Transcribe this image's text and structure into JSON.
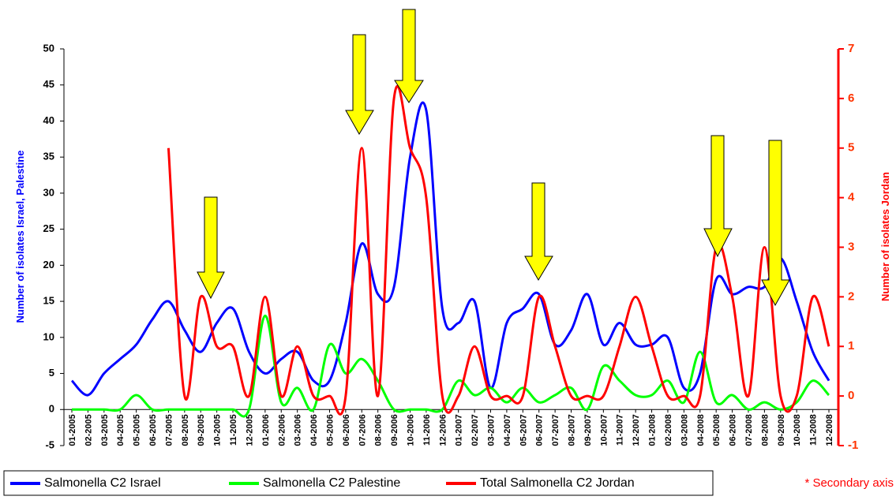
{
  "chart_data": {
    "type": "line",
    "categories": [
      "01-2005",
      "02-2005",
      "03-2005",
      "04-2005",
      "05-2005",
      "06-2005",
      "07-2005",
      "08-2005",
      "09-2005",
      "10-2005",
      "11-2005",
      "12-2005",
      "01-2006",
      "02-2006",
      "03-2006",
      "04-2006",
      "05-2006",
      "06-2006",
      "07-2006",
      "08-2006",
      "09-2006",
      "10-2006",
      "11-2006",
      "12-2006",
      "01-2007",
      "02-2007",
      "03-2007",
      "04-2007",
      "05-2007",
      "06-2007",
      "07-2007",
      "08-2007",
      "09-2007",
      "10-2007",
      "11-2007",
      "12-2007",
      "01-2008",
      "02-2008",
      "03-2008",
      "04-2008",
      "05-2008",
      "06-2008",
      "07-2008",
      "08-2008",
      "09-2008",
      "10-2008",
      "11-2008",
      "12-2008"
    ],
    "series": [
      {
        "name": "Salmonella C2 Israel",
        "color": "#0000ff",
        "values": [
          4,
          2,
          5,
          7,
          9,
          12.5,
          15,
          11,
          8,
          12,
          14,
          8,
          5,
          7,
          8,
          4,
          4,
          12,
          23,
          16,
          17,
          35,
          41.5,
          14,
          12,
          15,
          3,
          12,
          14,
          16,
          9,
          11,
          16,
          9,
          12,
          9,
          9,
          10,
          3,
          5,
          18,
          16,
          17,
          17,
          21,
          15,
          8,
          4
        ]
      },
      {
        "name": "Salmonella C2 Palestine",
        "color": "#00ff00",
        "values": [
          0,
          0,
          0,
          0,
          2,
          0,
          0,
          0,
          0,
          0,
          0,
          0,
          13,
          1,
          3,
          0,
          9,
          5,
          7,
          4,
          0,
          0,
          0,
          0,
          4,
          2,
          3,
          1,
          3,
          1,
          2,
          3,
          0,
          6,
          4,
          2,
          2,
          4,
          1,
          8,
          1,
          2,
          0,
          1,
          0,
          1,
          4,
          2
        ]
      },
      {
        "name": "Total Salmonella C2 Jordan",
        "color": "#ff0000",
        "axis": "y2",
        "values": [
          null,
          null,
          null,
          null,
          null,
          null,
          5,
          0,
          2,
          1,
          1,
          0,
          2,
          0,
          1,
          0,
          0,
          0,
          5,
          0,
          6,
          5,
          4,
          0,
          0,
          1,
          0,
          0,
          0,
          2,
          1,
          0,
          0,
          0,
          1,
          2,
          1,
          0,
          0,
          0,
          3,
          2,
          0,
          3,
          0,
          0,
          2,
          1
        ]
      }
    ],
    "y_label": "Number of isolates Israel, Palestine",
    "y2_label": "Number of isolates Jordan",
    "ylim": [
      -5,
      50
    ],
    "yticks": [
      -5,
      0,
      5,
      10,
      15,
      20,
      25,
      30,
      35,
      40,
      45,
      50
    ],
    "y2lim": [
      -1,
      7
    ],
    "y2ticks": [
      -1,
      0,
      1,
      2,
      3,
      4,
      5,
      6,
      7
    ],
    "annotation": "* Secondary axis"
  }
}
